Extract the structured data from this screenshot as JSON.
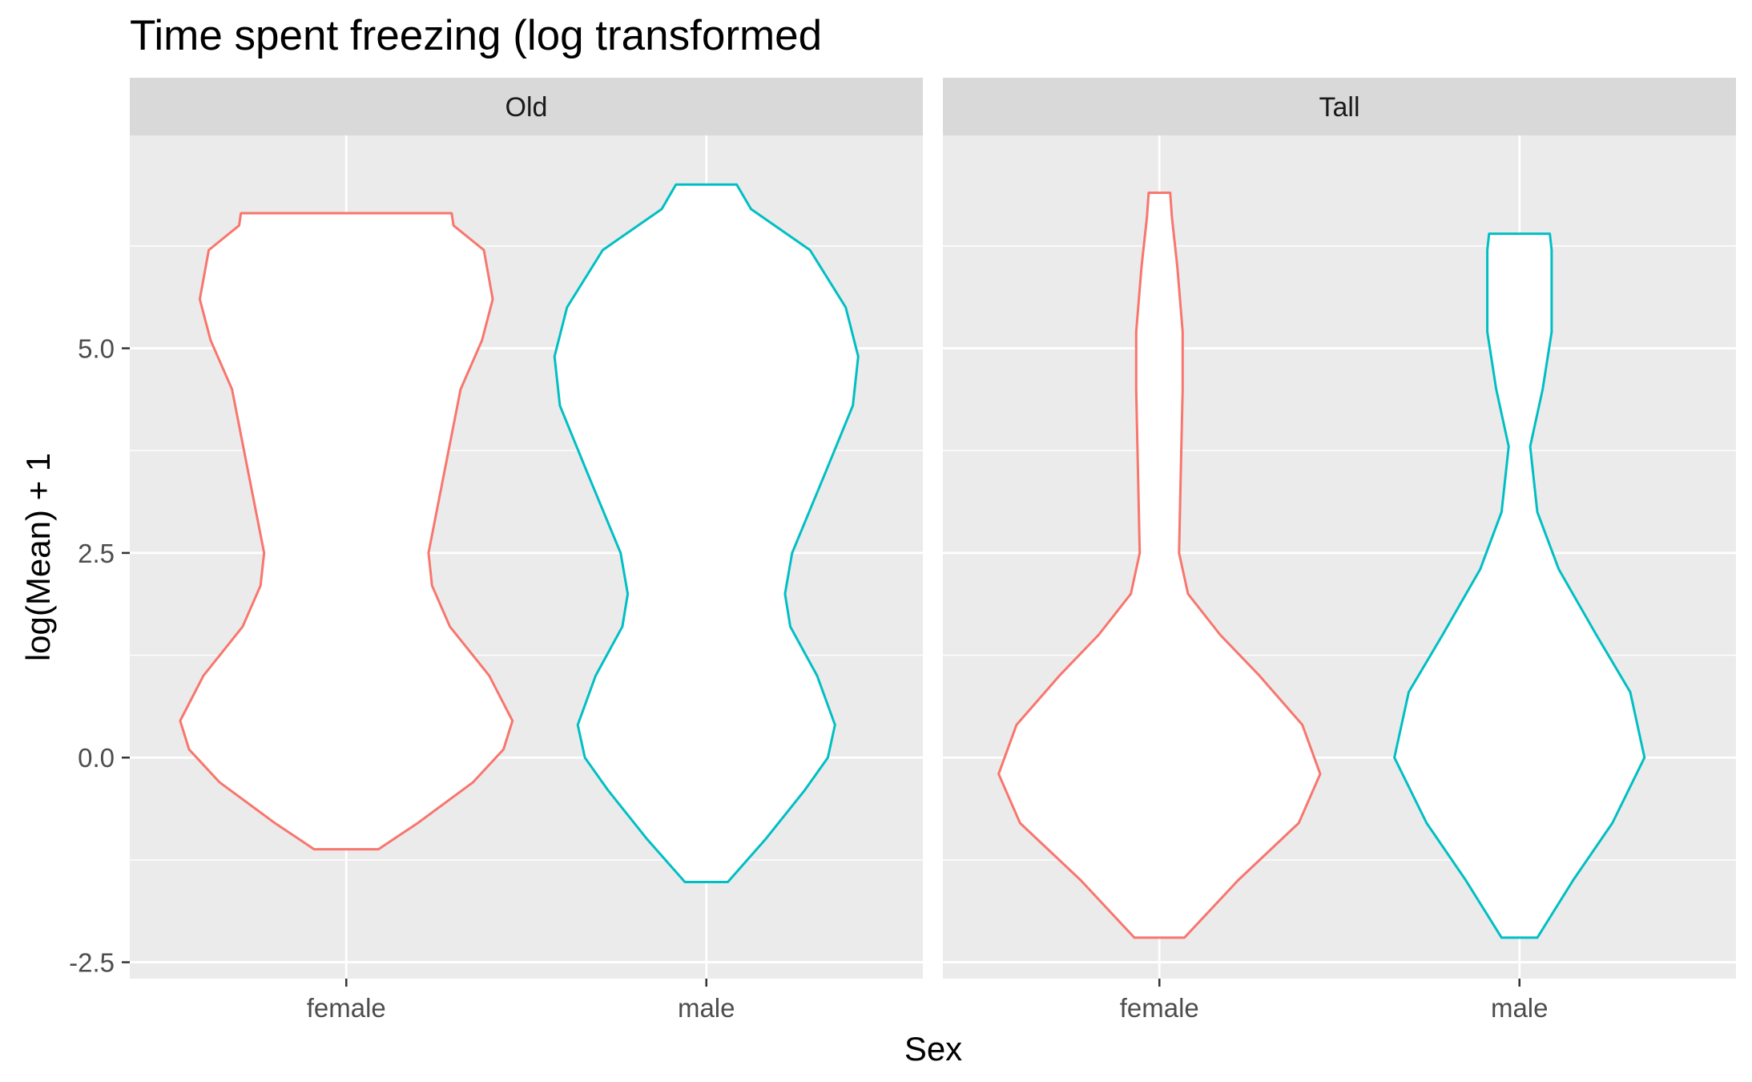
{
  "chart_data": {
    "type": "violin",
    "title": "Time spent freezing (log transformed",
    "xlabel": "Sex",
    "ylabel": "log(Mean) + 1",
    "ylim": [
      -2.7,
      7.6
    ],
    "yticks": [
      "-2.5",
      "0.0",
      "2.5",
      "5.0"
    ],
    "ytick_values": [
      -2.5,
      0.0,
      2.5,
      5.0
    ],
    "grid": true,
    "categories": [
      "female",
      "male"
    ],
    "colors": {
      "female": "#F8766D",
      "male": "#00BFC4"
    },
    "facets": [
      {
        "label": "Old",
        "violins": [
          {
            "group": "female",
            "min": -1.12,
            "max": 6.65,
            "profile": [
              [
                -1.12,
                0.18
              ],
              [
                -0.8,
                0.4
              ],
              [
                -0.3,
                0.71
              ],
              [
                0.1,
                0.88
              ],
              [
                0.45,
                0.93
              ],
              [
                1.0,
                0.8
              ],
              [
                1.6,
                0.58
              ],
              [
                2.1,
                0.48
              ],
              [
                2.5,
                0.46
              ],
              [
                3.5,
                0.55
              ],
              [
                4.5,
                0.64
              ],
              [
                5.1,
                0.76
              ],
              [
                5.6,
                0.82
              ],
              [
                6.2,
                0.77
              ],
              [
                6.5,
                0.6
              ],
              [
                6.65,
                0.59
              ]
            ]
          },
          {
            "group": "male",
            "min": -1.52,
            "max": 7.0,
            "profile": [
              [
                -1.52,
                0.12
              ],
              [
                -1.0,
                0.33
              ],
              [
                -0.4,
                0.55
              ],
              [
                0.0,
                0.68
              ],
              [
                0.4,
                0.72
              ],
              [
                1.0,
                0.62
              ],
              [
                1.6,
                0.47
              ],
              [
                2.0,
                0.44
              ],
              [
                2.5,
                0.48
              ],
              [
                3.5,
                0.67
              ],
              [
                4.3,
                0.82
              ],
              [
                4.9,
                0.85
              ],
              [
                5.5,
                0.78
              ],
              [
                6.2,
                0.58
              ],
              [
                6.7,
                0.25
              ],
              [
                7.0,
                0.17
              ]
            ]
          }
        ]
      },
      {
        "label": "Tall",
        "violins": [
          {
            "group": "female",
            "min": -2.2,
            "max": 6.9,
            "profile": [
              [
                -2.2,
                0.14
              ],
              [
                -1.5,
                0.44
              ],
              [
                -0.8,
                0.78
              ],
              [
                -0.2,
                0.9
              ],
              [
                0.4,
                0.8
              ],
              [
                1.0,
                0.56
              ],
              [
                1.5,
                0.34
              ],
              [
                2.0,
                0.16
              ],
              [
                2.5,
                0.11
              ],
              [
                3.5,
                0.12
              ],
              [
                4.5,
                0.13
              ],
              [
                5.2,
                0.13
              ],
              [
                6.0,
                0.1
              ],
              [
                6.6,
                0.07
              ],
              [
                6.9,
                0.06
              ]
            ]
          },
          {
            "group": "male",
            "min": -2.2,
            "max": 6.4,
            "profile": [
              [
                -2.2,
                0.1
              ],
              [
                -1.5,
                0.3
              ],
              [
                -0.8,
                0.52
              ],
              [
                0.0,
                0.7
              ],
              [
                0.8,
                0.62
              ],
              [
                1.5,
                0.43
              ],
              [
                2.3,
                0.22
              ],
              [
                3.0,
                0.1
              ],
              [
                3.8,
                0.06
              ],
              [
                4.5,
                0.13
              ],
              [
                5.2,
                0.18
              ],
              [
                5.8,
                0.18
              ],
              [
                6.2,
                0.18
              ],
              [
                6.4,
                0.17
              ]
            ]
          }
        ]
      }
    ]
  }
}
